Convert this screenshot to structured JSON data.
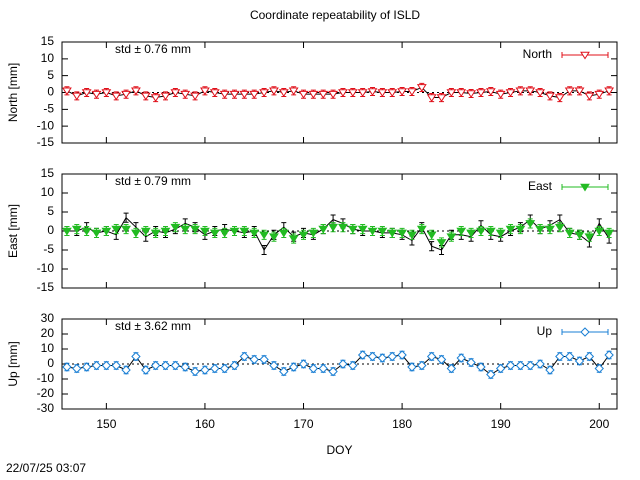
{
  "title": "Coordinate repeatability of ISLD",
  "timestamp": "22/07/25 03:07",
  "chart_data": [
    {
      "type": "line",
      "ylabel": "North [mm]",
      "annotation": "std ± 0.76 mm",
      "x": [
        146,
        147,
        148,
        149,
        150,
        151,
        152,
        153,
        154,
        155,
        156,
        157,
        158,
        159,
        160,
        161,
        162,
        163,
        164,
        165,
        166,
        167,
        168,
        169,
        170,
        171,
        172,
        173,
        174,
        175,
        176,
        177,
        178,
        179,
        180,
        181,
        182,
        183,
        184,
        185,
        186,
        187,
        188,
        189,
        190,
        191,
        192,
        193,
        194,
        195,
        196,
        197,
        198,
        199,
        200,
        201
      ],
      "xlim": [
        145.5,
        201.8
      ],
      "xticks": [
        150,
        160,
        170,
        180,
        190,
        200
      ],
      "ylim": [
        -15,
        15
      ],
      "yticks": [
        -15,
        -10,
        -5,
        0,
        5,
        10,
        15
      ],
      "series": [
        {
          "name": "North",
          "color": "#e0101a",
          "marker": "triangle-down-open",
          "error": 1.2,
          "values": [
            0.5,
            -1,
            0,
            -0.5,
            0,
            -1,
            -0.5,
            0.5,
            -1,
            -1.5,
            -1,
            0,
            -0.5,
            -1,
            0.5,
            0,
            -0.5,
            -0.5,
            -0.5,
            -0.5,
            0,
            0.5,
            0,
            0.5,
            -0.5,
            -0.5,
            -0.5,
            -0.5,
            0,
            0,
            0,
            0.3,
            0,
            0,
            0.3,
            0.3,
            1.5,
            -1.5,
            -1.5,
            0,
            0,
            -0.3,
            0,
            0.3,
            -0.5,
            0,
            0.5,
            0.5,
            0,
            -1,
            -1.5,
            0.5,
            0.5,
            -1,
            -0.5,
            0.5
          ]
        }
      ],
      "legend": "upper right"
    },
    {
      "type": "line",
      "ylabel": "East [mm]",
      "annotation": "std ± 0.79 mm",
      "x": [
        146,
        147,
        148,
        149,
        150,
        151,
        152,
        153,
        154,
        155,
        156,
        157,
        158,
        159,
        160,
        161,
        162,
        163,
        164,
        165,
        166,
        167,
        168,
        169,
        170,
        171,
        172,
        173,
        174,
        175,
        176,
        177,
        178,
        179,
        180,
        181,
        182,
        183,
        184,
        185,
        186,
        187,
        188,
        189,
        190,
        191,
        192,
        193,
        194,
        195,
        196,
        197,
        198,
        199,
        200,
        201
      ],
      "xlim": [
        145.5,
        201.8
      ],
      "xticks": [
        150,
        160,
        170,
        180,
        190,
        200
      ],
      "ylim": [
        -15,
        15
      ],
      "yticks": [
        -15,
        -10,
        -5,
        0,
        5,
        10,
        15
      ],
      "series": [
        {
          "name": "East",
          "color": "#22bb22",
          "marker": "triangle-down",
          "error": 1.2,
          "values": [
            0,
            0.5,
            0,
            -0.5,
            0,
            0.5,
            0.5,
            -0.5,
            0,
            -0.5,
            0,
            1,
            0.5,
            0.5,
            0,
            -0.5,
            -0.5,
            0,
            0,
            -0.5,
            -1,
            -1.5,
            -0.5,
            -2,
            -1,
            -0.5,
            0.5,
            1,
            1,
            0.5,
            0.5,
            0,
            0,
            -0.5,
            -0.5,
            -1,
            0.5,
            -1,
            -3,
            -1.5,
            0,
            -0.5,
            0,
            0,
            -0.5,
            0.5,
            0.5,
            2,
            0.5,
            0.5,
            1,
            -0.5,
            -1,
            -1.5,
            0,
            -0.5
          ]
        }
      ],
      "reference_values": [
        0,
        0,
        1,
        -0.5,
        0,
        -1,
        3.5,
        1,
        -1.5,
        0,
        -0.5,
        0.5,
        2,
        1,
        -1,
        0,
        0.5,
        0,
        -0.5,
        0,
        -5,
        -1,
        1,
        -1.5,
        -0.5,
        -1,
        0.5,
        3,
        2,
        0.5,
        0,
        0,
        -0.5,
        -0.5,
        -1,
        -2.5,
        1,
        -4,
        -5,
        -1,
        -1,
        -1.5,
        1.5,
        -1,
        -1.5,
        0,
        1,
        3,
        0.5,
        1.5,
        3,
        -0.5,
        -1,
        -3,
        2,
        -2
      ],
      "legend": "upper right"
    },
    {
      "type": "line",
      "ylabel": "Up [mm]",
      "xlabel": "DOY",
      "annotation": "std ± 3.62 mm",
      "x": [
        146,
        147,
        148,
        149,
        150,
        151,
        152,
        153,
        154,
        155,
        156,
        157,
        158,
        159,
        160,
        161,
        162,
        163,
        164,
        165,
        166,
        167,
        168,
        169,
        170,
        171,
        172,
        173,
        174,
        175,
        176,
        177,
        178,
        179,
        180,
        181,
        182,
        183,
        184,
        185,
        186,
        187,
        188,
        189,
        190,
        191,
        192,
        193,
        194,
        195,
        196,
        197,
        198,
        199,
        200,
        201
      ],
      "xlim": [
        145.5,
        201.8
      ],
      "xticks": [
        150,
        160,
        170,
        180,
        190,
        200
      ],
      "ylim": [
        -30,
        30
      ],
      "yticks": [
        -30,
        -20,
        -10,
        0,
        10,
        20,
        30
      ],
      "series": [
        {
          "name": "Up",
          "color": "#1a7fd4",
          "marker": "diamond-open",
          "error": 2.5,
          "values": [
            -2,
            -3,
            -2,
            -1,
            -1,
            -1,
            -4,
            5,
            -4,
            -1,
            -1,
            -1,
            -2,
            -5,
            -4,
            -3,
            -3,
            -1,
            5,
            3,
            3,
            -1,
            -5,
            -2,
            0,
            -3,
            -3,
            -5,
            0,
            -1,
            6,
            5,
            4,
            5,
            6,
            -2,
            -1,
            5,
            3,
            -3,
            4,
            1,
            -2,
            -7,
            -3,
            -1,
            -1,
            -1,
            0,
            -4,
            5,
            5,
            2,
            5,
            -3,
            6
          ]
        }
      ],
      "legend": "upper right"
    }
  ]
}
